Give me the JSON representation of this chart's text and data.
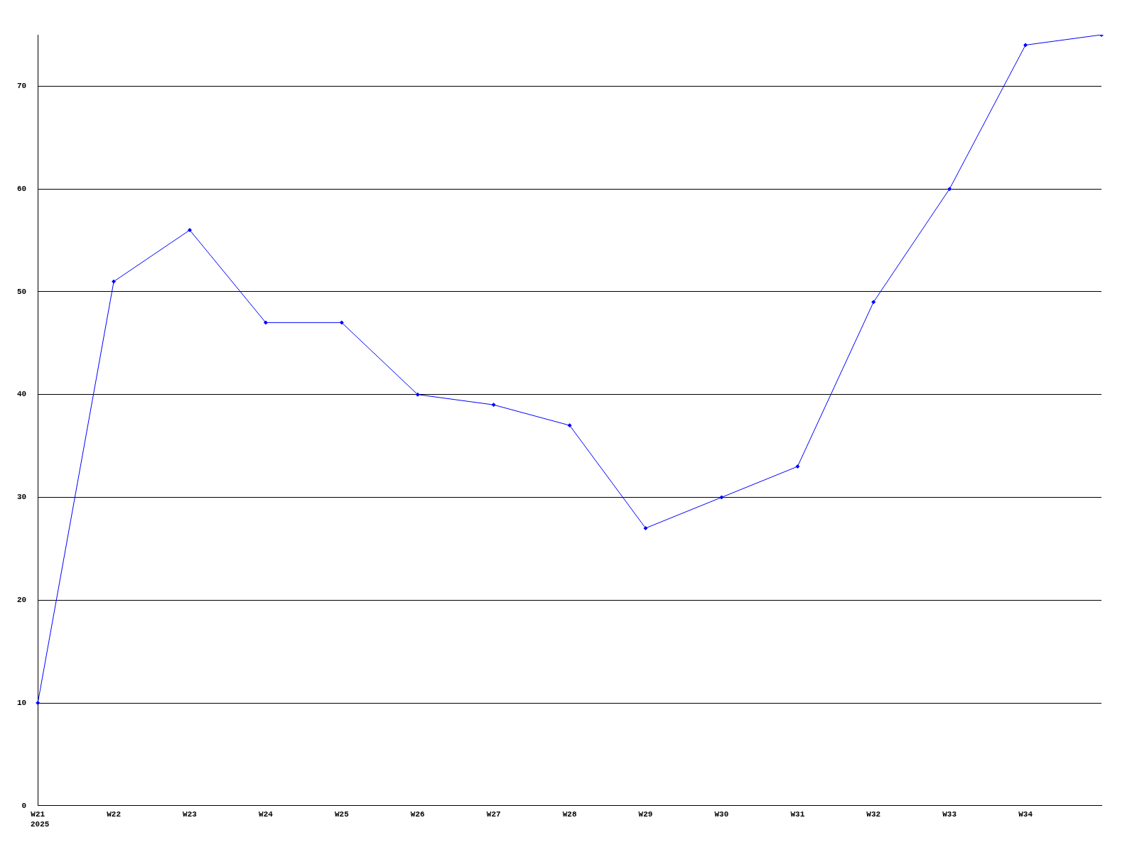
{
  "chart_data": {
    "type": "line",
    "categories": [
      "W21",
      "W22",
      "W23",
      "W24",
      "W25",
      "W26",
      "W27",
      "W28",
      "W29",
      "W30",
      "W31",
      "W32",
      "W33",
      "W34",
      null
    ],
    "series": [
      {
        "color": "#0000ff",
        "values": [
          10,
          51,
          56,
          47,
          47,
          40,
          39,
          37,
          27,
          30,
          33,
          49,
          60,
          74,
          75
        ]
      }
    ],
    "ylim": [
      0,
      75
    ],
    "yticks": [
      0,
      10,
      20,
      30,
      40,
      50,
      60,
      70
    ],
    "annotations": [
      "2025"
    ],
    "grid": "y",
    "legend": false,
    "marker": "diamond",
    "line_style": "solid"
  }
}
